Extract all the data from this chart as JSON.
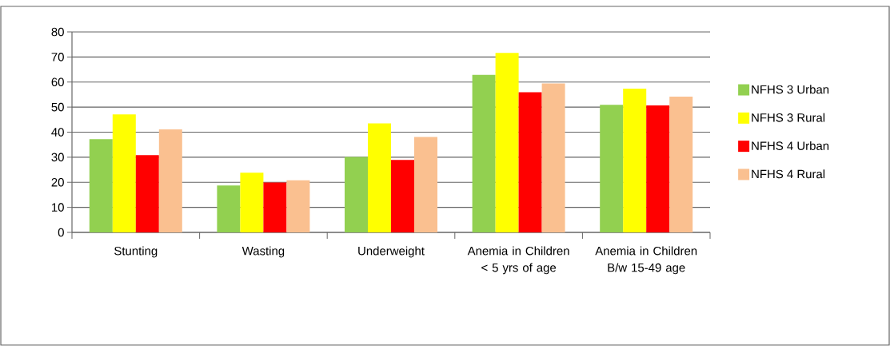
{
  "chart_data": {
    "type": "bar",
    "categories": [
      "Stunting",
      "Wasting",
      "Underweight",
      "Anemia in Children < 5 yrs of age",
      "Anemia in Children B/w 15-49 age"
    ],
    "series": [
      {
        "name": "NFHS 3 Urban",
        "color": "#92d050",
        "values": [
          37.2,
          18.7,
          30.1,
          62.9,
          50.9
        ]
      },
      {
        "name": "NFHS 3 Rural",
        "color": "#ffff00",
        "values": [
          47.1,
          23.8,
          43.5,
          71.6,
          57.4
        ]
      },
      {
        "name": "NFHS 4 Urban",
        "color": "#ff0000",
        "values": [
          30.8,
          19.9,
          28.9,
          55.9,
          50.7
        ]
      },
      {
        "name": "NFHS 4 Rural",
        "color": "#fac090",
        "values": [
          41.1,
          20.8,
          38.1,
          59.4,
          54.2
        ]
      }
    ],
    "ylim": [
      0,
      80
    ],
    "yticks": [
      0,
      10,
      20,
      30,
      40,
      50,
      60,
      70,
      80
    ],
    "grid": "y",
    "legend": "right"
  }
}
